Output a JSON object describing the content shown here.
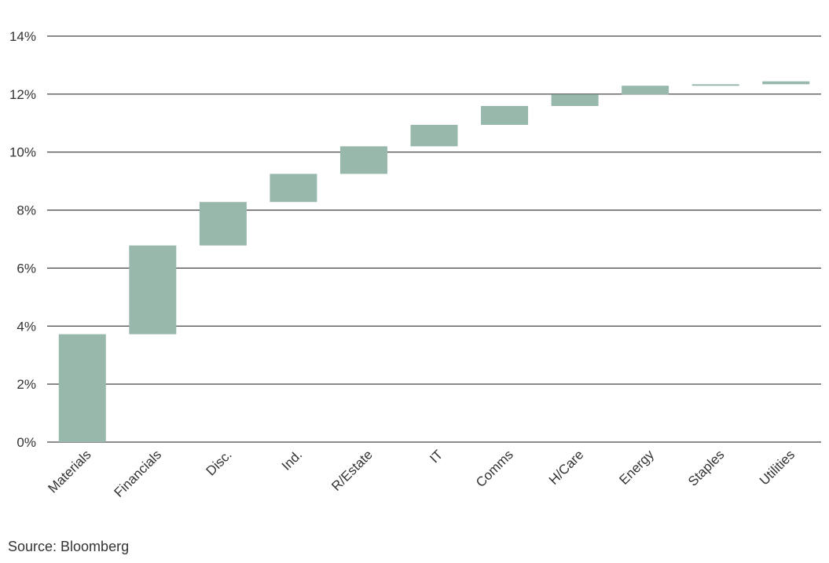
{
  "chart_data": {
    "type": "waterfall",
    "title": "",
    "xlabel": "",
    "ylabel": "",
    "categories": [
      "Materials",
      "Financials",
      "Disc.",
      "Ind.",
      "R/Estate",
      "IT",
      "Comms",
      "H/Care",
      "Energy",
      "Staples",
      "Utilities"
    ],
    "values": [
      3.72,
      3.06,
      1.5,
      0.97,
      0.95,
      0.74,
      0.65,
      0.4,
      0.3,
      0.05,
      0.1
    ],
    "ylim": [
      0,
      14
    ],
    "yticks": [
      0,
      2,
      4,
      6,
      8,
      10,
      12,
      14
    ],
    "ytick_labels": [
      "0%",
      "2%",
      "4%",
      "6%",
      "8%",
      "10%",
      "12%",
      "14%"
    ],
    "grid": true,
    "legend": "none",
    "bar_color": "#98b8ab",
    "grid_color": "#1a1a1a"
  },
  "source": "Source: Bloomberg"
}
